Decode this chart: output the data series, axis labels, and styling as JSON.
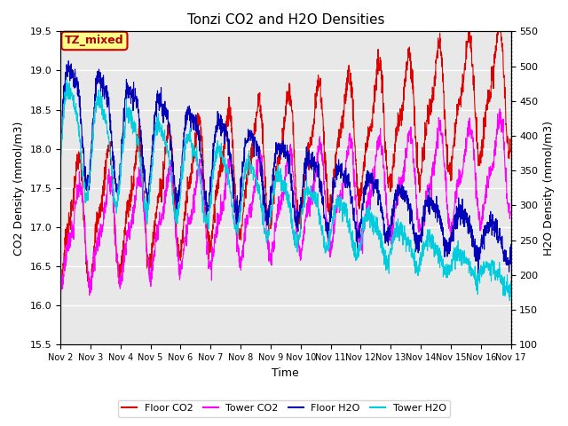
{
  "title": "Tonzi CO2 and H2O Densities",
  "xlabel": "Time",
  "ylabel_left": "CO2 Density (mmol/m3)",
  "ylabel_right": "H2O Density (mmol/m3)",
  "ylim_left": [
    15.5,
    19.5
  ],
  "ylim_right": [
    100,
    550
  ],
  "annotation": "TZ_mixed",
  "annotation_facecolor": "#FFFF88",
  "annotation_edgecolor": "#CC0000",
  "background_color": "#E8E8E8",
  "colors": {
    "floor_co2": "#DD0000",
    "tower_co2": "#FF00FF",
    "floor_h2o": "#0000BB",
    "tower_h2o": "#00CCDD"
  },
  "legend_labels": [
    "Floor CO2",
    "Tower CO2",
    "Floor H2O",
    "Tower H2O"
  ],
  "xtick_labels": [
    "Nov 2",
    "Nov 3",
    "Nov 4",
    "Nov 5",
    "Nov 6",
    "Nov 7",
    "Nov 8",
    "Nov 9",
    "Nov 10",
    "Nov 11",
    "Nov 12",
    "Nov 13",
    "Nov 14",
    "Nov 15",
    "Nov 16",
    "Nov 17"
  ],
  "n_points": 2000,
  "days": 15
}
